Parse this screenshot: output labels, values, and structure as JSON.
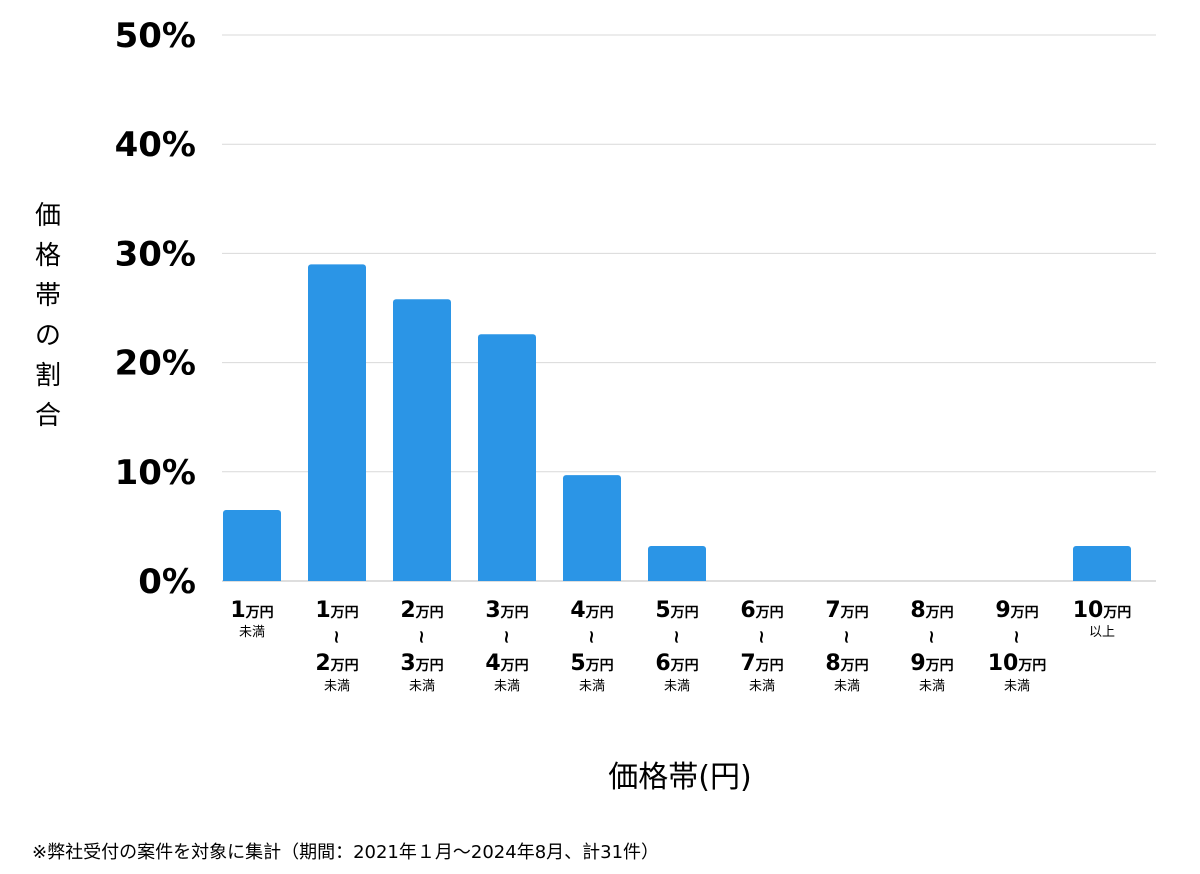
{
  "chart_data": {
    "type": "bar",
    "ylabel": "価格帯の割合",
    "xlabel": "価格帯(円)",
    "ylim": [
      0,
      50
    ],
    "yticks": [
      "0%",
      "10%",
      "20%",
      "30%",
      "40%",
      "50%"
    ],
    "grid": true,
    "bar_color": "#2b95e6",
    "categories": [
      {
        "top": "1",
        "bottom": "",
        "sub": "未満"
      },
      {
        "top": "1",
        "bottom": "2",
        "sub": "未満"
      },
      {
        "top": "2",
        "bottom": "3",
        "sub": "未満"
      },
      {
        "top": "3",
        "bottom": "4",
        "sub": "未満"
      },
      {
        "top": "4",
        "bottom": "5",
        "sub": "未満"
      },
      {
        "top": "5",
        "bottom": "6",
        "sub": "未満"
      },
      {
        "top": "6",
        "bottom": "7",
        "sub": "未満"
      },
      {
        "top": "7",
        "bottom": "8",
        "sub": "未満"
      },
      {
        "top": "8",
        "bottom": "9",
        "sub": "未満"
      },
      {
        "top": "9",
        "bottom": "10",
        "sub": "未満"
      },
      {
        "top": "10",
        "bottom": "",
        "sub": "以上"
      }
    ],
    "unit_label": "万円",
    "range_symbol": "~",
    "values": [
      6.5,
      29.0,
      25.8,
      22.6,
      9.7,
      3.2,
      0,
      0,
      0,
      0,
      3.2
    ]
  },
  "footnote": "※弊社受付の案件を対象に集計（期間：2021年１月〜2024年8月、計31件）"
}
